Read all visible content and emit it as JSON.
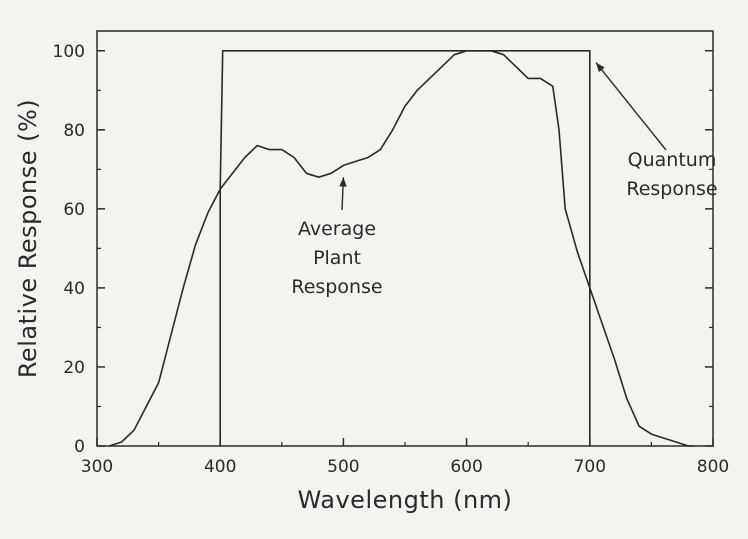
{
  "chart_data": {
    "type": "line",
    "title": "",
    "xlabel": "Wavelength  (nm)",
    "ylabel": "Relative Response  (%)",
    "xlim": [
      300,
      800
    ],
    "ylim": [
      0,
      105
    ],
    "x_ticks": [
      300,
      400,
      500,
      600,
      700,
      800
    ],
    "y_ticks": [
      0,
      20,
      40,
      60,
      80,
      100
    ],
    "grid": false,
    "legend": "none",
    "series": [
      {
        "x": [
          310,
          320,
          330,
          340,
          350,
          360,
          370,
          380,
          390,
          400,
          410,
          420,
          430,
          440,
          450,
          460,
          470,
          480,
          490,
          500,
          510,
          520,
          530,
          540,
          550,
          560,
          570,
          580,
          590,
          600,
          610,
          620,
          630,
          640,
          650,
          660,
          670,
          675,
          680,
          690,
          700,
          710,
          720,
          730,
          740,
          750,
          760,
          770,
          780,
          785
        ],
        "values": [
          0,
          1,
          4,
          10,
          16,
          28,
          40,
          51,
          59,
          65,
          69,
          73,
          76,
          75,
          75,
          73,
          69,
          68,
          69,
          71,
          72,
          73,
          75,
          80,
          86,
          90,
          93,
          96,
          99,
          100,
          100,
          100,
          99,
          96,
          93,
          93,
          91,
          80,
          60,
          49,
          40,
          31,
          22,
          12,
          5,
          3,
          2,
          1,
          0,
          0
        ]
      },
      {
        "x": [
          400,
          400,
          402,
          700,
          700
        ],
        "values": [
          0,
          65,
          100,
          100,
          0
        ]
      }
    ],
    "annotations": [
      {
        "lines": [
          "Average",
          "Plant",
          "Response"
        ],
        "arrow_to": {
          "x": 500,
          "y": 68
        }
      },
      {
        "lines": [
          "Quantum",
          "Response"
        ],
        "arrow_to": {
          "x": 705,
          "y": 97
        }
      }
    ]
  }
}
